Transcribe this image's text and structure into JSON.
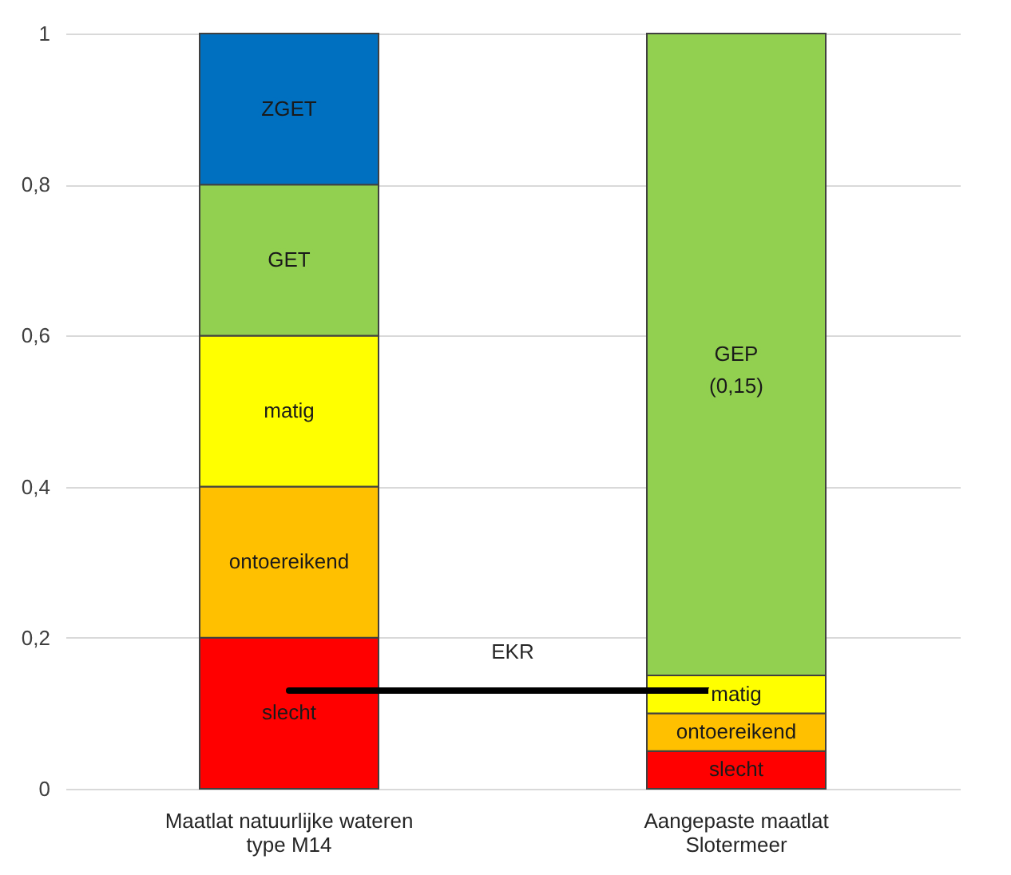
{
  "chart_data": {
    "type": "bar",
    "stacked": true,
    "categories": [
      "Maatlat natuurlijke wateren type M14",
      "Aangepaste maatlat Slotermeer"
    ],
    "series": [
      {
        "name": "slecht",
        "color": "#ff0000",
        "values": [
          0.2,
          0.05
        ]
      },
      {
        "name": "ontoereikend",
        "color": "#ffc000",
        "values": [
          0.2,
          0.05
        ]
      },
      {
        "name": "matig",
        "color": "#ffff00",
        "values": [
          0.2,
          0.05
        ]
      },
      {
        "name": "GET",
        "color": "#92d050",
        "values": [
          0.2,
          null
        ]
      },
      {
        "name": "ZGET",
        "color": "#0070c0",
        "values": [
          0.2,
          null
        ]
      },
      {
        "name": "GEP\n(0,15)",
        "color": "#92d050",
        "values": [
          null,
          0.85
        ]
      },
      {
        "name": "EKR",
        "type": "line",
        "color": "#000000",
        "values": [
          0.13,
          0.13
        ]
      }
    ],
    "ylim": [
      0,
      1
    ],
    "yticks": [
      0,
      {
        "value": 0.2,
        "label": "0,2"
      },
      {
        "value": 0.4,
        "label": "0,4"
      },
      {
        "value": 0.6,
        "label": "0,6"
      },
      {
        "value": 0.8,
        "label": "0,8"
      },
      1
    ],
    "grid": "y"
  }
}
